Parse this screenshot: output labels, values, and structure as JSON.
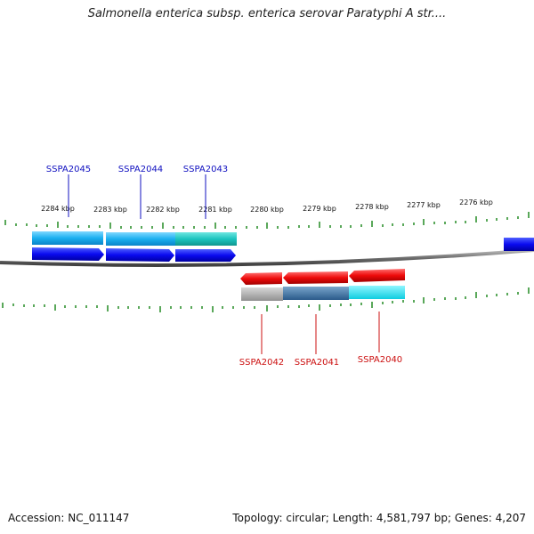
{
  "title": "Salmonella enterica subsp. enterica serovar Paratyphi A str....",
  "footer": {
    "accession": "Accession: NC_011147",
    "summary": "Topology: circular; Length: 4,581,797 bp; Genes: 4,207"
  },
  "scale_labels": [
    "2284 kbp",
    "2283 kbp",
    "2282 kbp",
    "2281 kbp",
    "2280 kbp",
    "2279 kbp",
    "2278 kbp",
    "2277 kbp",
    "2276 kbp"
  ],
  "genes_top": [
    {
      "label": "SSPA2045",
      "color": "#1010c0"
    },
    {
      "label": "SSPA2044",
      "color": "#1010c0"
    },
    {
      "label": "SSPA2043",
      "color": "#1010c0"
    }
  ],
  "genes_bottom": [
    {
      "label": "SSPA2042",
      "color": "#cc1010"
    },
    {
      "label": "SSPA2041",
      "color": "#cc1010"
    },
    {
      "label": "SSPA2040",
      "color": "#cc1010"
    }
  ],
  "colors": {
    "forward_gene": "#0a0af0",
    "reverse_gene": "#ee0a0a",
    "backbone": "#808080",
    "ticks": "#228b22"
  }
}
